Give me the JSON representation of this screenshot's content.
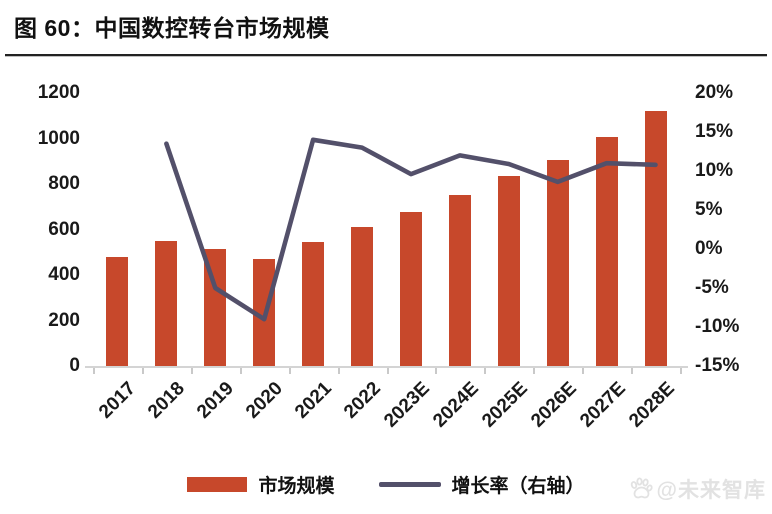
{
  "header": {
    "title": "图 60：中国数控转台市场规模"
  },
  "watermark": {
    "icon": "paw-icon",
    "text": "@未来智库"
  },
  "legend": {
    "bar_label": "市场规模",
    "line_label": "增长率（右轴）"
  },
  "colors": {
    "bar": "#c7482b",
    "line": "#53506a",
    "axis_text": "#1a1a1a",
    "axis_line": "#d4d4d4",
    "watermark": "#e2e2e2"
  },
  "chart_data": {
    "type": "bar",
    "subtype": "combo-bar-line",
    "title": "中国数控转台市场规模",
    "categories": [
      "2017",
      "2018",
      "2019",
      "2020",
      "2021",
      "2022",
      "2023E",
      "2024E",
      "2025E",
      "2026E",
      "2027E",
      "2028E"
    ],
    "series": [
      {
        "name": "市场规模",
        "type": "bar",
        "axis": "left",
        "color": "#c7482b",
        "values": [
          480,
          550,
          515,
          470,
          545,
          610,
          675,
          750,
          835,
          905,
          1005,
          1120
        ]
      },
      {
        "name": "增长率（右轴）",
        "type": "line",
        "axis": "right",
        "color": "#53506a",
        "values": [
          null,
          13.5,
          -5,
          -9,
          14,
          13,
          9.6,
          12,
          10.9,
          8.6,
          11,
          10.8
        ]
      }
    ],
    "left_axis": {
      "min": 0,
      "max": 1200,
      "step": 200,
      "ticks": [
        "1200",
        "1000",
        "800",
        "600",
        "400",
        "200",
        "0"
      ]
    },
    "right_axis": {
      "min": -15,
      "max": 20,
      "step": 5,
      "ticks": [
        "20%",
        "15%",
        "10%",
        "5%",
        "0%",
        "-5%",
        "-10%",
        "-15%"
      ]
    },
    "grid": false,
    "legend_position": "bottom"
  }
}
